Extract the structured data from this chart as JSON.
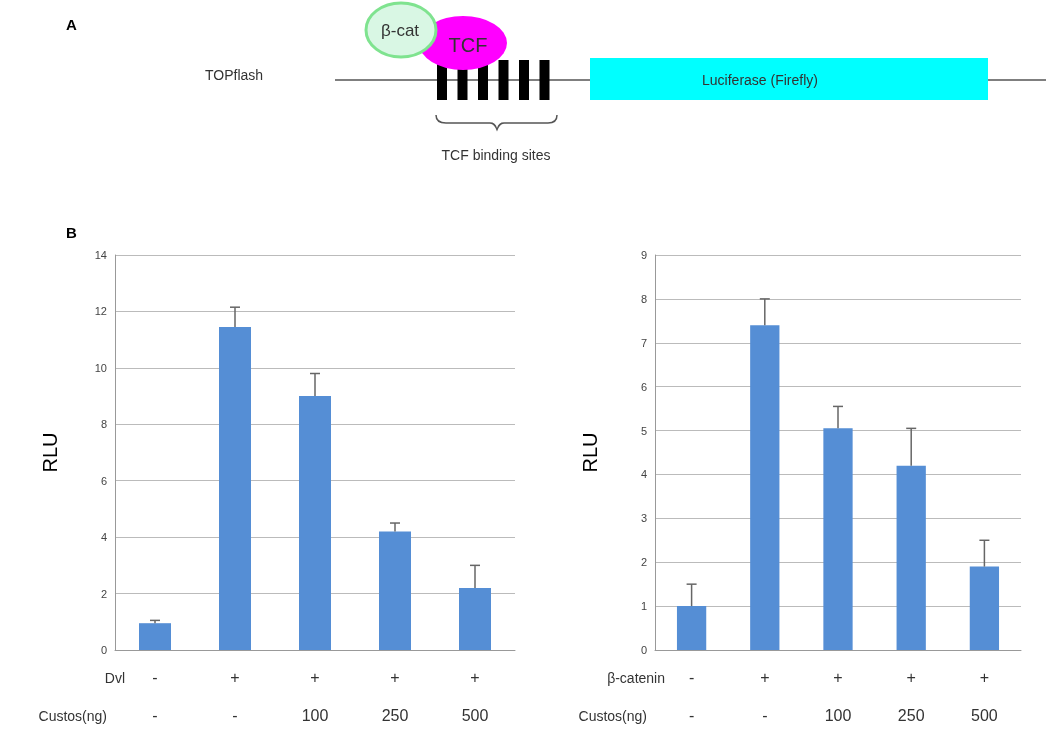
{
  "chart_data": [
    {
      "type": "other",
      "title": "A",
      "annotations": [
        "TOPflash",
        "β-cat",
        "TCF",
        "Luciferase (Firefly)",
        "TCF binding sites"
      ]
    },
    {
      "type": "bar",
      "title": "B",
      "ylabel": "RLU",
      "categories": [
        "-\n-",
        "+\n-",
        "+\n100",
        "+\n250",
        "+\n500"
      ],
      "annotations": [
        "Dvl",
        "Custos(ng)"
      ],
      "series": [
        {
          "color": "#558ed5",
          "values": [
            0.95,
            11.45,
            9.0,
            4.2,
            2.2
          ],
          "errors": [
            [
              0.95,
              1.05
            ],
            [
              11.45,
              12.15
            ],
            [
              9.0,
              9.8
            ],
            [
              4.2,
              4.5
            ],
            [
              2.2,
              3.0
            ]
          ]
        }
      ],
      "ylim": [
        0,
        14
      ],
      "yticks": [
        0,
        2,
        4,
        6,
        8,
        10,
        12,
        14
      ],
      "grid": "y"
    },
    {
      "type": "bar",
      "ylabel": "RLU",
      "categories": [
        "-\n-",
        "+\n-",
        "+\n100",
        "+\n250",
        "+\n500"
      ],
      "annotations": [
        "β-catenin",
        "Custos(ng)"
      ],
      "series": [
        {
          "color": "#558ed5",
          "values": [
            1.0,
            7.4,
            5.05,
            4.2,
            1.9
          ],
          "errors": [
            [
              1.0,
              1.5
            ],
            [
              7.4,
              8.0
            ],
            [
              5.05,
              5.55
            ],
            [
              4.2,
              5.05
            ],
            [
              1.9,
              2.5
            ]
          ]
        }
      ],
      "ylim": [
        0,
        9
      ],
      "yticks": [
        0,
        1,
        2,
        3,
        4,
        5,
        6,
        7,
        8,
        9
      ],
      "grid": "y"
    }
  ]
}
